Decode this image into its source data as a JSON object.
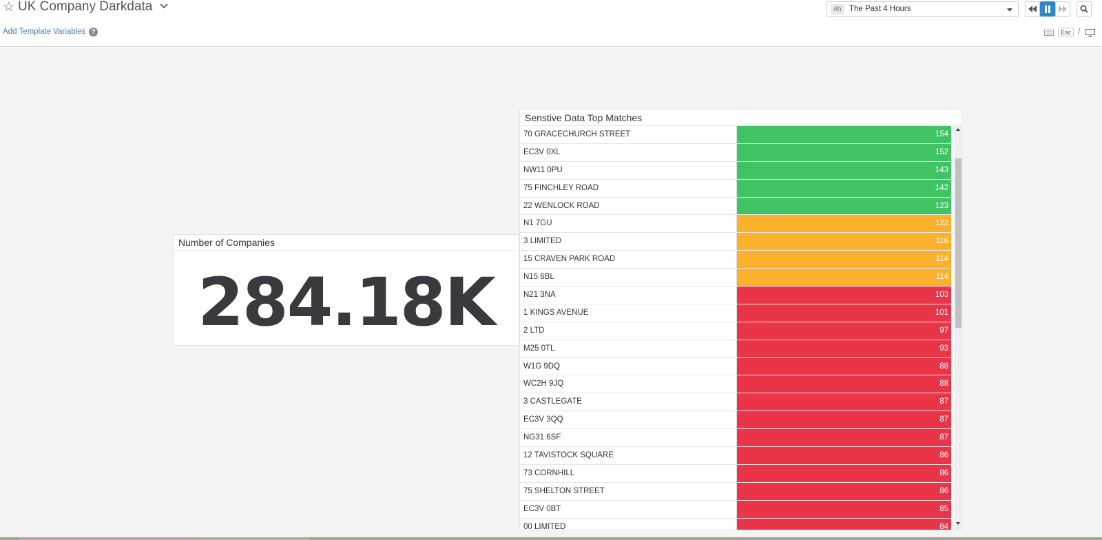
{
  "header": {
    "title": "UK Company Darkdata",
    "add_template_label": "Add Template Variables",
    "help_glyph": "?",
    "icons": [
      "star-icon",
      "chevron-down-icon",
      "help-icon",
      "rewind-icon",
      "pause-icon",
      "fast-forward-icon",
      "search-icon",
      "keyboard-icon",
      "monitor-icon"
    ]
  },
  "time": {
    "badge": "4h",
    "label": "The Past 4 Hours"
  },
  "shortcuts": {
    "esc": "Esc",
    "separator": "/"
  },
  "companies": {
    "title": "Number of Companies",
    "value": "284.18K"
  },
  "top_matches": {
    "title": "Senstive Data Top Matches",
    "colors": {
      "high": "#40c463",
      "mid": "#fbb12c",
      "low": "#ea3447"
    },
    "rows": [
      {
        "label": "70 GRACECHURCH STREET",
        "value": "154",
        "level": "high"
      },
      {
        "label": "EC3V 0XL",
        "value": "152",
        "level": "high"
      },
      {
        "label": "NW11 0PU",
        "value": "143",
        "level": "high"
      },
      {
        "label": "75 FINCHLEY ROAD",
        "value": "142",
        "level": "high"
      },
      {
        "label": "22 WENLOCK ROAD",
        "value": "123",
        "level": "high"
      },
      {
        "label": "N1 7GU",
        "value": "122",
        "level": "mid"
      },
      {
        "label": "3 LIMITED",
        "value": "116",
        "level": "mid"
      },
      {
        "label": "15 CRAVEN PARK ROAD",
        "value": "114",
        "level": "mid"
      },
      {
        "label": "N15 6BL",
        "value": "114",
        "level": "mid"
      },
      {
        "label": "N21 3NA",
        "value": "103",
        "level": "low"
      },
      {
        "label": "1 KINGS AVENUE",
        "value": "101",
        "level": "low"
      },
      {
        "label": "2 LTD",
        "value": "97",
        "level": "low"
      },
      {
        "label": "M25 0TL",
        "value": "93",
        "level": "low"
      },
      {
        "label": "W1G 9DQ",
        "value": "88",
        "level": "low"
      },
      {
        "label": "WC2H 9JQ",
        "value": "88",
        "level": "low"
      },
      {
        "label": "3 CASTLEGATE",
        "value": "87",
        "level": "low"
      },
      {
        "label": "EC3V 3QQ",
        "value": "87",
        "level": "low"
      },
      {
        "label": "NG31 6SF",
        "value": "87",
        "level": "low"
      },
      {
        "label": "12 TAVISTOCK SQUARE",
        "value": "86",
        "level": "low"
      },
      {
        "label": "73 CORNHILL",
        "value": "86",
        "level": "low"
      },
      {
        "label": "75 SHELTON STREET",
        "value": "86",
        "level": "low"
      },
      {
        "label": "EC3V 0BT",
        "value": "85",
        "level": "low"
      },
      {
        "label": "00 LIMITED",
        "value": "84",
        "level": "low"
      }
    ]
  }
}
